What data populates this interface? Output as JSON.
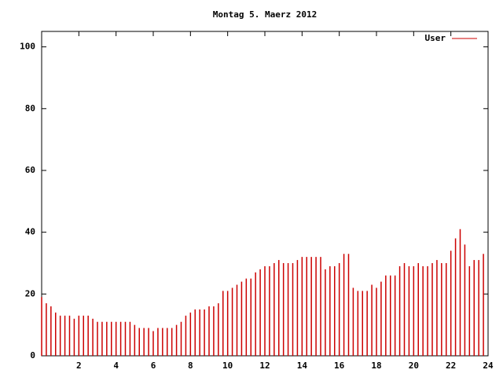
{
  "chart_data": {
    "type": "impulse",
    "title": "Montag 5. Maerz 2012",
    "x": [
      0,
      0.25,
      0.5,
      0.75,
      1,
      1.25,
      1.5,
      1.75,
      2,
      2.25,
      2.5,
      2.75,
      3,
      3.25,
      3.5,
      3.75,
      4,
      4.25,
      4.5,
      4.75,
      5,
      5.25,
      5.5,
      5.75,
      6,
      6.25,
      6.5,
      6.75,
      7,
      7.25,
      7.5,
      7.75,
      8,
      8.25,
      8.5,
      8.75,
      9,
      9.25,
      9.5,
      9.75,
      10,
      10.25,
      10.5,
      10.75,
      11,
      11.25,
      11.5,
      11.75,
      12,
      12.25,
      12.5,
      12.75,
      13,
      13.25,
      13.5,
      13.75,
      14,
      14.25,
      14.5,
      14.75,
      15,
      15.25,
      15.5,
      15.75,
      16,
      16.25,
      16.5,
      16.75,
      17,
      17.25,
      17.5,
      17.75,
      18,
      18.25,
      18.5,
      18.75,
      19,
      19.25,
      19.5,
      19.75,
      20,
      20.25,
      20.5,
      20.75,
      21,
      21.25,
      21.5,
      21.75,
      22,
      22.25,
      22.5,
      22.75,
      23,
      23.25,
      23.5,
      23.75
    ],
    "series": [
      {
        "name": "User",
        "color": "#cc0000",
        "values": [
          19,
          17,
          16,
          14,
          13,
          13,
          13,
          12,
          13,
          13,
          13,
          12,
          11,
          11,
          11,
          11,
          11,
          11,
          11,
          11,
          10,
          9,
          9,
          9,
          8,
          9,
          9,
          9,
          9,
          10,
          11,
          13,
          14,
          15,
          15,
          15,
          16,
          16,
          17,
          21,
          21,
          22,
          23,
          24,
          25,
          25,
          27,
          28,
          29,
          29,
          30,
          31,
          30,
          30,
          30,
          31,
          32,
          32,
          32,
          32,
          32,
          28,
          29,
          29,
          30,
          33,
          33,
          22,
          21,
          21,
          21,
          23,
          22,
          24,
          26,
          26,
          26,
          29,
          30,
          29,
          29,
          30,
          29,
          29,
          30,
          31,
          30,
          30,
          34,
          38,
          41,
          36,
          29,
          31,
          31,
          33
        ]
      }
    ],
    "xlim": [
      0,
      24
    ],
    "xticks": [
      2,
      4,
      6,
      8,
      10,
      12,
      14,
      16,
      18,
      20,
      22,
      24
    ],
    "ylim": [
      0,
      105
    ],
    "yticks": [
      0,
      20,
      40,
      60,
      80,
      100
    ],
    "legend": "top-right"
  }
}
